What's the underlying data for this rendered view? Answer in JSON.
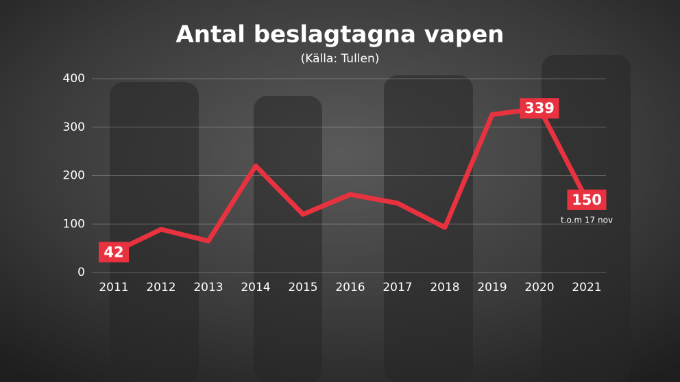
{
  "chart_data": {
    "type": "line",
    "title": "Antal beslagtagna vapen",
    "subtitle": "(Källa: Tullen)",
    "categories": [
      "2011",
      "2012",
      "2013",
      "2014",
      "2015",
      "2016",
      "2017",
      "2018",
      "2019",
      "2020",
      "2021"
    ],
    "series": [
      {
        "name": "Antal beslagtagna vapen",
        "color": "#e8323f",
        "values": [
          42,
          89,
          65,
          220,
          120,
          161,
          143,
          93,
          326,
          339,
          150
        ],
        "value_labels": [
          "42",
          null,
          null,
          null,
          null,
          null,
          null,
          null,
          null,
          "339",
          "150"
        ]
      }
    ],
    "note": "t.o.m 17 nov",
    "ylim": [
      0,
      400
    ],
    "yticks": [
      0,
      100,
      200,
      300,
      400
    ],
    "grid": true
  }
}
